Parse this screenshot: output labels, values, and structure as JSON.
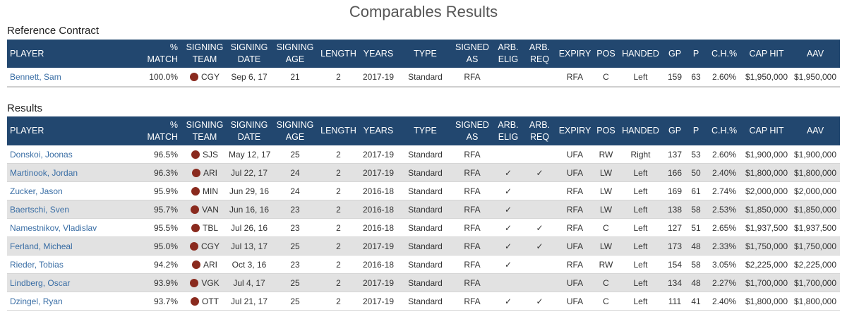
{
  "title": "Comparables Results",
  "reference": {
    "label": "Reference Contract",
    "columns": [
      [
        "PLAYER"
      ],
      [
        "%",
        "MATCH"
      ],
      [
        "SIGNING",
        "TEAM"
      ],
      [
        "SIGNING",
        "DATE"
      ],
      [
        "SIGNING",
        "AGE"
      ],
      [
        "LENGTH"
      ],
      [
        "YEARS"
      ],
      [
        "TYPE"
      ],
      [
        "SIGNED",
        "AS"
      ],
      [
        "ARB.",
        "ELIG"
      ],
      [
        "ARB.",
        "REQ"
      ],
      [
        "EXPIRY"
      ],
      [
        "POS"
      ],
      [
        "HANDED"
      ],
      [
        "GP"
      ],
      [
        "P"
      ],
      [
        "C.H.%"
      ],
      [
        "CAP HIT"
      ],
      [
        "AAV"
      ]
    ],
    "rows": [
      [
        "Bennett, Sam",
        "100.0%",
        "CGY",
        "Sep 6, 17",
        "21",
        "2",
        "2017-19",
        "Standard",
        "RFA",
        null,
        null,
        "RFA",
        "C",
        "Left",
        "159",
        "63",
        "2.60%",
        "$1,950,000",
        "$1,950,000"
      ]
    ]
  },
  "results": {
    "label": "Results",
    "columns": [
      [
        "PLAYER"
      ],
      [
        "%",
        "MATCH"
      ],
      [
        "SIGNING",
        "TEAM"
      ],
      [
        "SIGNING",
        "DATE"
      ],
      [
        "SIGNING",
        "AGE"
      ],
      [
        "LENGTH"
      ],
      [
        "YEARS"
      ],
      [
        "TYPE"
      ],
      [
        "SIGNED",
        "AS"
      ],
      [
        "ARB.",
        "ELIG"
      ],
      [
        "ARB.",
        "REQ"
      ],
      [
        "EXPIRY"
      ],
      [
        "POS"
      ],
      [
        "HANDED"
      ],
      [
        "GP"
      ],
      [
        "P"
      ],
      [
        "C.H.%"
      ],
      [
        "CAP HIT"
      ],
      [
        "AAV"
      ]
    ],
    "rows": [
      [
        "Donskoi, Joonas",
        "96.5%",
        "SJS",
        "May 12, 17",
        "25",
        "2",
        "2017-19",
        "Standard",
        "RFA",
        null,
        null,
        "UFA",
        "RW",
        "Right",
        "137",
        "53",
        "2.60%",
        "$1,900,000",
        "$1,900,000"
      ],
      [
        "Martinook, Jordan",
        "96.3%",
        "ARI",
        "Jul 22, 17",
        "24",
        "2",
        "2017-19",
        "Standard",
        "RFA",
        "✓",
        "✓",
        "UFA",
        "LW",
        "Left",
        "166",
        "50",
        "2.40%",
        "$1,800,000",
        "$1,800,000"
      ],
      [
        "Zucker, Jason",
        "95.9%",
        "MIN",
        "Jun 29, 16",
        "24",
        "2",
        "2016-18",
        "Standard",
        "RFA",
        "✓",
        null,
        "RFA",
        "LW",
        "Left",
        "169",
        "61",
        "2.74%",
        "$2,000,000",
        "$2,000,000"
      ],
      [
        "Baertschi, Sven",
        "95.7%",
        "VAN",
        "Jun 16, 16",
        "23",
        "2",
        "2016-18",
        "Standard",
        "RFA",
        "✓",
        null,
        "RFA",
        "LW",
        "Left",
        "138",
        "58",
        "2.53%",
        "$1,850,000",
        "$1,850,000"
      ],
      [
        "Namestnikov, Vladislav",
        "95.5%",
        "TBL",
        "Jul 26, 16",
        "23",
        "2",
        "2016-18",
        "Standard",
        "RFA",
        "✓",
        "✓",
        "RFA",
        "C",
        "Left",
        "127",
        "51",
        "2.65%",
        "$1,937,500",
        "$1,937,500"
      ],
      [
        "Ferland, Micheal",
        "95.0%",
        "CGY",
        "Jul 13, 17",
        "25",
        "2",
        "2017-19",
        "Standard",
        "RFA",
        "✓",
        "✓",
        "UFA",
        "LW",
        "Left",
        "173",
        "48",
        "2.33%",
        "$1,750,000",
        "$1,750,000"
      ],
      [
        "Rieder, Tobias",
        "94.2%",
        "ARI",
        "Oct 3, 16",
        "23",
        "2",
        "2016-18",
        "Standard",
        "RFA",
        "✓",
        null,
        "RFA",
        "RW",
        "Left",
        "154",
        "58",
        "3.05%",
        "$2,225,000",
        "$2,225,000"
      ],
      [
        "Lindberg, Oscar",
        "93.9%",
        "VGK",
        "Jul 4, 17",
        "25",
        "2",
        "2017-19",
        "Standard",
        "RFA",
        null,
        null,
        "UFA",
        "C",
        "Left",
        "134",
        "48",
        "2.27%",
        "$1,700,000",
        "$1,700,000"
      ],
      [
        "Dzingel, Ryan",
        "93.7%",
        "OTT",
        "Jul 21, 17",
        "25",
        "2",
        "2017-19",
        "Standard",
        "RFA",
        "✓",
        "✓",
        "UFA",
        "C",
        "Left",
        "111",
        "41",
        "2.40%",
        "$1,800,000",
        "$1,800,000"
      ]
    ]
  }
}
